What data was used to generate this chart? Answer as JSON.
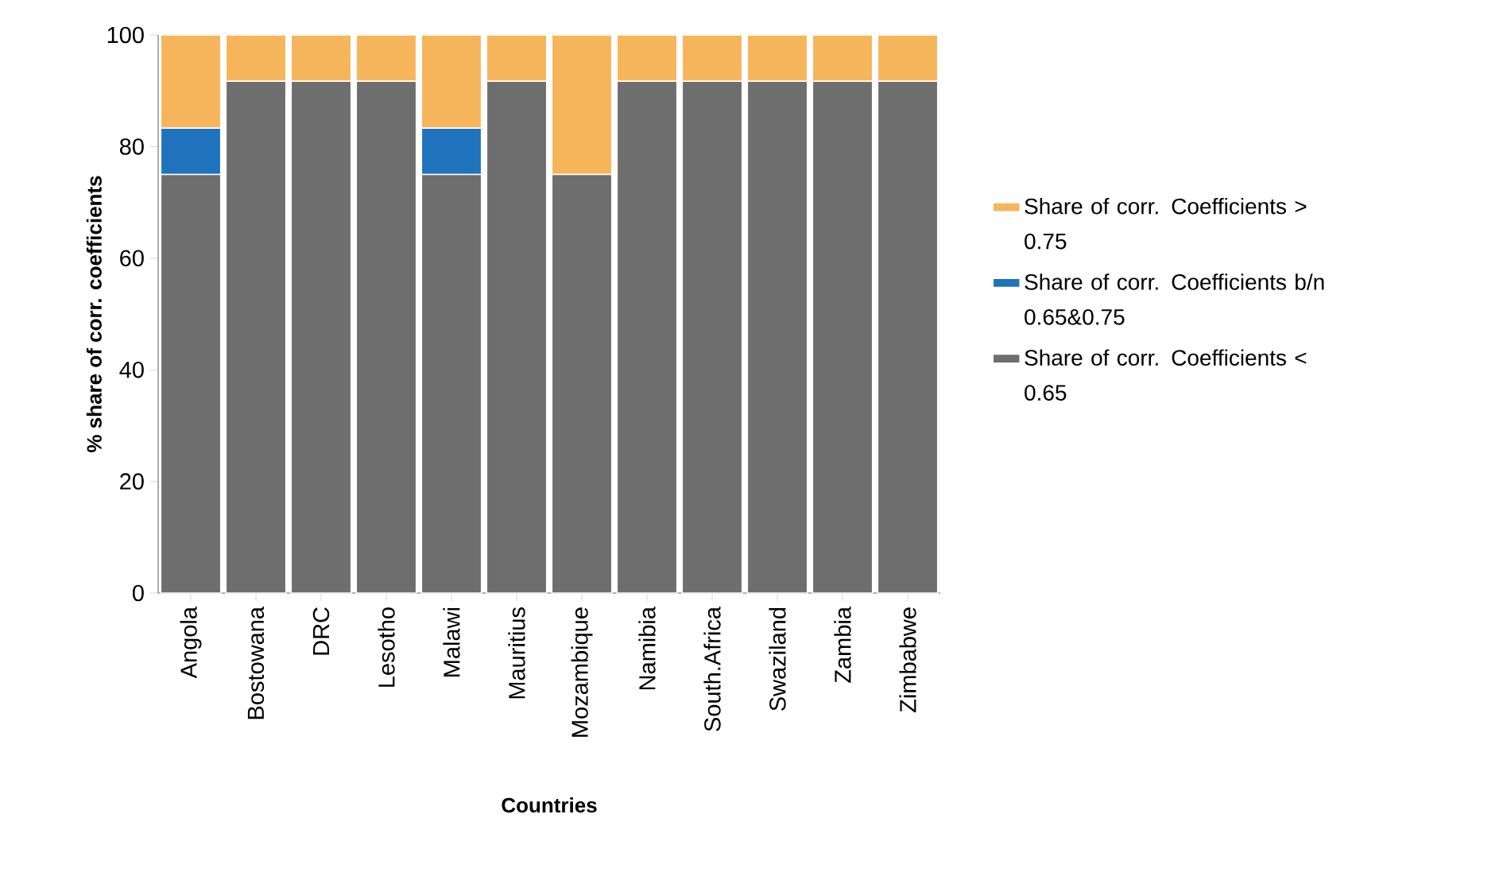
{
  "chart_data": {
    "type": "bar",
    "stacked": true,
    "xlabel": "Countries",
    "ylabel": "% share of corr. coefficients",
    "categories": [
      "Angola",
      "Bostowana",
      "DRC",
      "Lesotho",
      "Malawi",
      "Mauritius",
      "Mozambique",
      "Namibia",
      "South.Africa",
      "Swaziland",
      "Zambia",
      "Zimbabwe"
    ],
    "series": [
      {
        "name": "Share of corr. Coefficients < 0.65",
        "color": "#6e6e6e",
        "values": [
          75,
          91.7,
          91.7,
          91.7,
          75,
          91.7,
          75,
          91.7,
          91.7,
          91.7,
          91.7,
          91.7
        ]
      },
      {
        "name": "Share of corr. Coefficients b/n 0.65&0.75",
        "color": "#1f73bc",
        "values": [
          8.3,
          0,
          0,
          0,
          8.3,
          0,
          0,
          0,
          0,
          0,
          0,
          0
        ]
      },
      {
        "name": "Share of corr. Coefficients > 0.75",
        "color": "#f6b55b",
        "values": [
          16.7,
          8.3,
          8.3,
          8.3,
          16.7,
          8.3,
          25,
          8.3,
          8.3,
          8.3,
          8.3,
          8.3
        ]
      }
    ],
    "ylim": [
      0,
      100
    ],
    "yticks": [
      0,
      20,
      40,
      60,
      80,
      100
    ],
    "grid": false,
    "legend": "right"
  }
}
